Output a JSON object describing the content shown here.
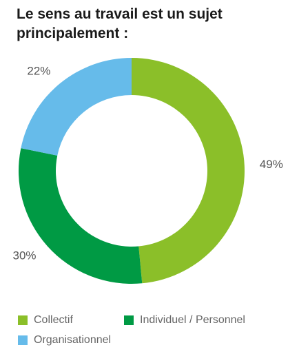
{
  "chart_data": {
    "type": "pie",
    "title": "Le sens au travail est un sujet principalement :",
    "categories": [
      "Collectif",
      "Individuel / Personnel",
      "Organisationnel"
    ],
    "values": [
      49,
      30,
      22
    ],
    "value_labels": [
      "49%",
      "30%",
      "22%"
    ],
    "colors": [
      "#8bbf29",
      "#009a44",
      "#66bbea"
    ],
    "donut": true,
    "legend_position": "bottom"
  },
  "legend": {
    "items": [
      {
        "label": "Collectif",
        "color": "#8bbf29"
      },
      {
        "label": "Individuel / Personnel",
        "color": "#009a44"
      },
      {
        "label": "Organisationnel",
        "color": "#66bbea"
      }
    ]
  }
}
